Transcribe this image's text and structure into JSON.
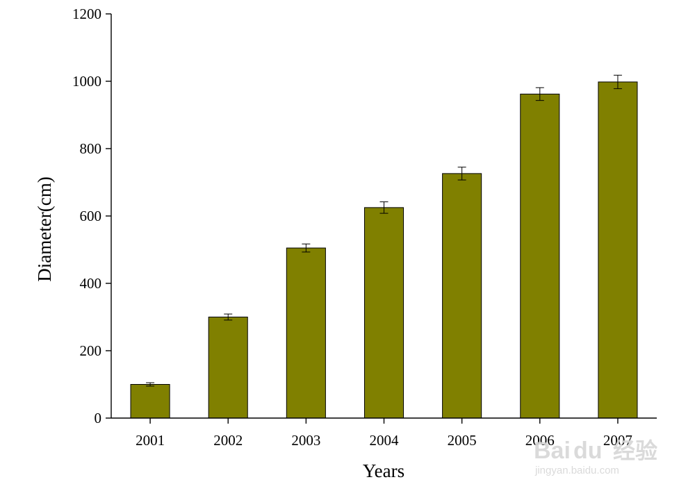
{
  "chart_data": {
    "type": "bar",
    "categories": [
      "2001",
      "2002",
      "2003",
      "2004",
      "2005",
      "2006",
      "2007"
    ],
    "series": [
      {
        "values": [
          100,
          300,
          505,
          625,
          726,
          962,
          998
        ],
        "errors": [
          5,
          9,
          12,
          17,
          19,
          19,
          20
        ],
        "color": "#808000"
      }
    ],
    "xlabel": "Years",
    "ylabel": "Diameter(cm)",
    "ylim": [
      0,
      1200
    ],
    "yticks": [
      "0",
      "200",
      "400",
      "600",
      "800",
      "1000",
      "1200"
    ],
    "grid": false,
    "legend": "none"
  },
  "watermark": {
    "brand": "Bai",
    "brand_paw": "du",
    "brand_cn": "经验",
    "url": "jingyan.baidu.com"
  }
}
